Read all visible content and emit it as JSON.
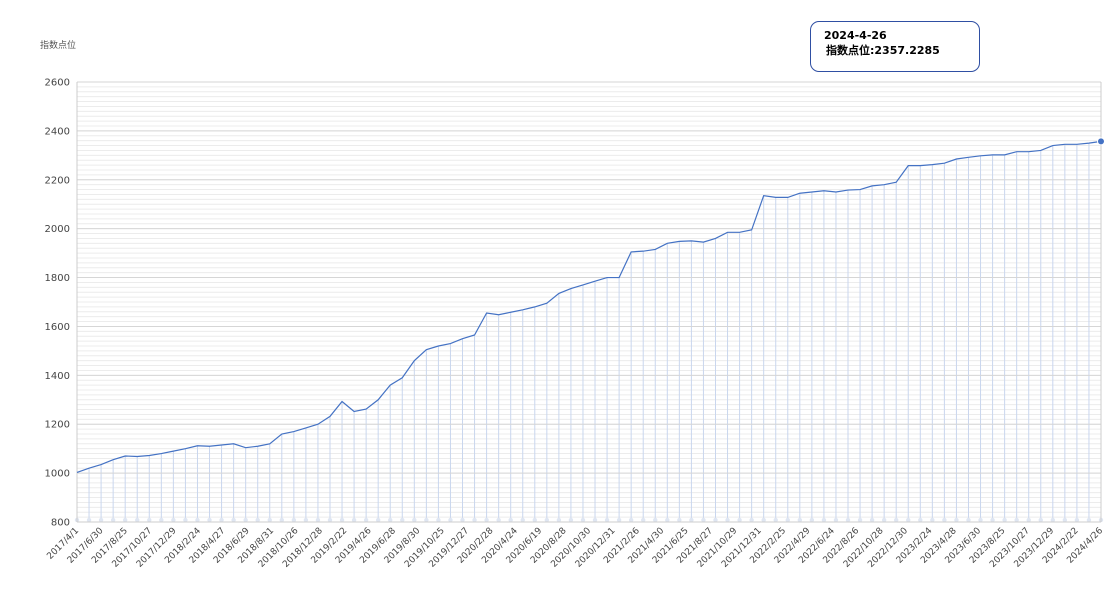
{
  "chart_data": {
    "type": "line",
    "ylabel": "指数点位",
    "ylim": [
      800,
      2600
    ],
    "yticks": [
      800,
      1000,
      1200,
      1400,
      1600,
      1800,
      2000,
      2200,
      2400,
      2600
    ],
    "grid": true,
    "series_color": "#4472c4",
    "x_tick_labels": [
      "2017/4/1",
      "2017/6/30",
      "2017/8/25",
      "2017/10/27",
      "2017/12/29",
      "2018/2/24",
      "2018/4/27",
      "2018/6/29",
      "2018/8/31",
      "2018/10/26",
      "2018/12/28",
      "2019/2/22",
      "2019/4/26",
      "2019/6/28",
      "2019/8/30",
      "2019/10/25",
      "2019/12/27",
      "2020/2/28",
      "2020/4/24",
      "2020/6/19",
      "2020/8/28",
      "2020/10/30",
      "2020/12/31",
      "2021/2/26",
      "2021/4/30",
      "2021/6/25",
      "2021/8/27",
      "2021/10/29",
      "2021/12/31",
      "2022/2/25",
      "2022/4/29",
      "2022/6/24",
      "2022/8/26",
      "2022/10/28",
      "2022/12/30",
      "2023/2/24",
      "2023/4/28",
      "2023/6/30",
      "2023/8/25",
      "2023/10/27",
      "2023/12/29",
      "2024/2/22",
      "2024/4/26"
    ],
    "values": [
      1003,
      1020,
      1035,
      1055,
      1070,
      1068,
      1072,
      1080,
      1090,
      1100,
      1112,
      1110,
      1115,
      1120,
      1104,
      1110,
      1120,
      1160,
      1170,
      1185,
      1200,
      1232,
      1293,
      1252,
      1262,
      1300,
      1360,
      1390,
      1460,
      1505,
      1520,
      1530,
      1550,
      1565,
      1655,
      1648,
      1658,
      1668,
      1680,
      1695,
      1735,
      1755,
      1770,
      1785,
      1800,
      1800,
      1905,
      1908,
      1915,
      1940,
      1948,
      1950,
      1945,
      1960,
      1985,
      1985,
      1995,
      2135,
      2128,
      2128,
      2145,
      2150,
      2155,
      2150,
      2158,
      2160,
      2175,
      2180,
      2190,
      2258,
      2258,
      2262,
      2268,
      2285,
      2292,
      2298,
      2302,
      2302,
      2315,
      2315,
      2320,
      2340,
      2345,
      2345,
      2350,
      2357
    ]
  },
  "tooltip": {
    "date": "2024-4-26",
    "value_text": "指数点位:2357.2285"
  }
}
